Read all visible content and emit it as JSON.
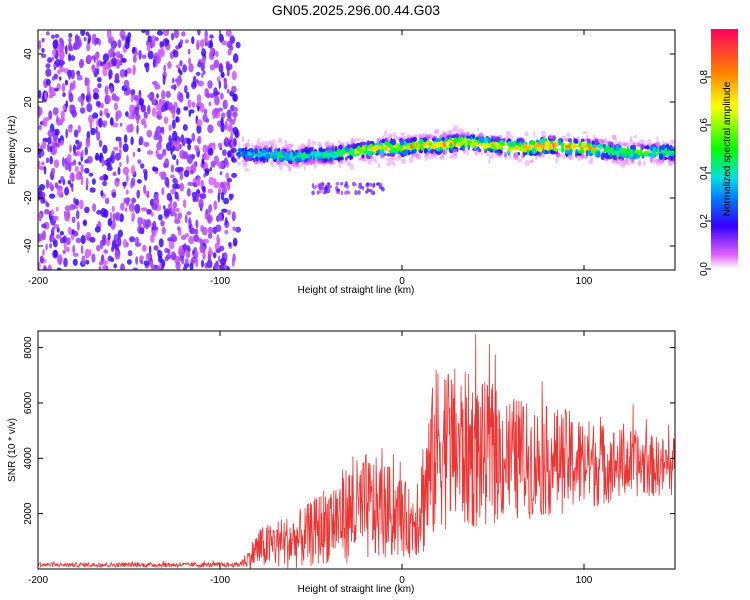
{
  "title": "GN05.2025.296.00.44.G03",
  "chart_data": [
    {
      "type": "heatmap",
      "xlabel": "Height of straight line (km)",
      "ylabel": "Frequency (Hz)",
      "xlim": [
        -200,
        150
      ],
      "ylim": [
        -50,
        50
      ],
      "xticks": [
        -200,
        -100,
        0,
        100
      ],
      "yticks": [
        -40,
        -20,
        0,
        20,
        40
      ],
      "noise_region": [
        -200,
        -90
      ],
      "signal_track": {
        "x": [
          -90,
          -80,
          -70,
          -60,
          -50,
          -40,
          -30,
          -20,
          -10,
          0,
          10,
          20,
          30,
          40,
          50,
          60,
          70,
          80,
          90,
          100,
          110,
          120,
          130,
          140,
          150
        ],
        "freq": [
          -1,
          -2,
          -2,
          -3,
          -2,
          -2,
          -1,
          0,
          1,
          1,
          2,
          2,
          3,
          3,
          2,
          1,
          1,
          2,
          1,
          1,
          0,
          -1,
          -1,
          -1,
          -1
        ],
        "intensity": [
          0.3,
          0.45,
          0.45,
          0.45,
          0.45,
          0.5,
          0.6,
          0.65,
          0.75,
          0.75,
          0.8,
          0.85,
          0.8,
          0.75,
          0.75,
          0.8,
          0.85,
          0.9,
          0.85,
          0.85,
          0.75,
          0.55,
          0.55,
          0.55,
          0.55
        ]
      },
      "colorbar": {
        "label": "Normalized spectral amplitude",
        "ticks": [
          0.0,
          0.2,
          0.4,
          0.6,
          0.8
        ],
        "range": [
          0,
          1
        ]
      }
    },
    {
      "type": "line",
      "xlabel": "Height of straight line (km)",
      "ylabel": "SNR (10 * v/v)",
      "xlim": [
        -200,
        150
      ],
      "ylim": [
        0,
        8600
      ],
      "xticks": [
        -200,
        -100,
        0,
        100
      ],
      "yticks": [
        2000,
        4000,
        6000,
        8000
      ],
      "series_color": "#ee3333",
      "envelope": {
        "x": [
          -200,
          -90,
          -85,
          -80,
          -70,
          -60,
          -50,
          -40,
          -30,
          -20,
          -10,
          0,
          5,
          10,
          15,
          20,
          25,
          30,
          40,
          50,
          60,
          70,
          80,
          90,
          100,
          110,
          120,
          130,
          140,
          150
        ],
        "mean": [
          150,
          150,
          350,
          700,
          900,
          1000,
          1250,
          1700,
          2000,
          2200,
          2100,
          1900,
          1600,
          2400,
          3300,
          4600,
          4500,
          4300,
          4200,
          4100,
          4000,
          3900,
          3900,
          3900,
          3800,
          3800,
          3800,
          3800,
          3700,
          3700
        ],
        "amp": [
          80,
          90,
          300,
          700,
          900,
          1000,
          1200,
          1500,
          1800,
          2000,
          1800,
          1500,
          1200,
          2000,
          2800,
          3100,
          3100,
          3000,
          2800,
          2500,
          2300,
          2100,
          2000,
          1900,
          1700,
          1500,
          1300,
          1200,
          1100,
          1100
        ]
      }
    }
  ]
}
